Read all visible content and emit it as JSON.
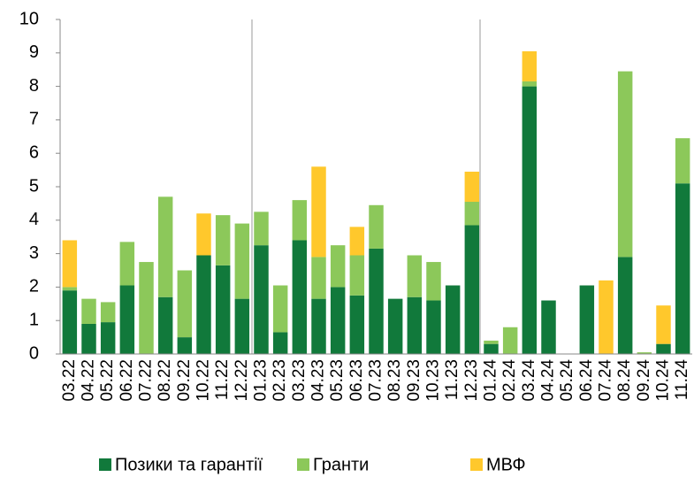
{
  "chart_data": {
    "type": "stacked_bar",
    "categories": [
      "03.22",
      "04.22",
      "05.22",
      "06.22",
      "07.22",
      "08.22",
      "09.22",
      "10.22",
      "11.22",
      "12.22",
      "01.23",
      "02.23",
      "03.23",
      "04.23",
      "05.23",
      "06.23",
      "07.23",
      "08.23",
      "09.23",
      "10.23",
      "11.23",
      "12.23",
      "01.24",
      "02.24",
      "03.24",
      "04.24",
      "05.24",
      "06.24",
      "07.24",
      "08.24",
      "09.24",
      "10.24",
      "11.24"
    ],
    "series": [
      {
        "name": "Позики та гарантії",
        "color": "#11793b",
        "values": [
          1.9,
          0.9,
          0.95,
          2.05,
          0,
          1.7,
          0.5,
          2.95,
          2.65,
          1.65,
          3.25,
          0.65,
          3.4,
          1.65,
          2.0,
          1.75,
          3.15,
          1.65,
          1.7,
          1.6,
          2.05,
          3.85,
          0.3,
          0,
          8.0,
          1.6,
          0,
          2.05,
          0,
          2.9,
          0,
          0.3,
          5.1
        ]
      },
      {
        "name": "Гранти",
        "color": "#8cc85a",
        "values": [
          0.1,
          0.75,
          0.6,
          1.3,
          2.75,
          3.0,
          2.0,
          0,
          1.5,
          2.25,
          1.0,
          1.4,
          1.2,
          1.25,
          1.25,
          1.2,
          1.3,
          0,
          1.25,
          1.15,
          0,
          0.7,
          0.1,
          0.8,
          0.15,
          0,
          0,
          0,
          0,
          5.55,
          0.05,
          0,
          1.35
        ]
      },
      {
        "name": "МВФ",
        "color": "#ffc82c",
        "values": [
          1.4,
          0,
          0,
          0,
          0,
          0,
          0,
          1.25,
          0,
          0,
          0,
          0,
          0,
          2.7,
          0,
          0.85,
          0,
          0,
          0,
          0,
          0,
          0.9,
          0,
          0,
          0.9,
          0,
          0,
          0,
          2.2,
          0,
          0,
          1.15,
          0
        ]
      }
    ],
    "ylim": [
      0,
      10
    ],
    "yticks": [
      0,
      1,
      2,
      3,
      4,
      5,
      6,
      7,
      8,
      9,
      10
    ],
    "grid": false,
    "legend": "bottom"
  }
}
